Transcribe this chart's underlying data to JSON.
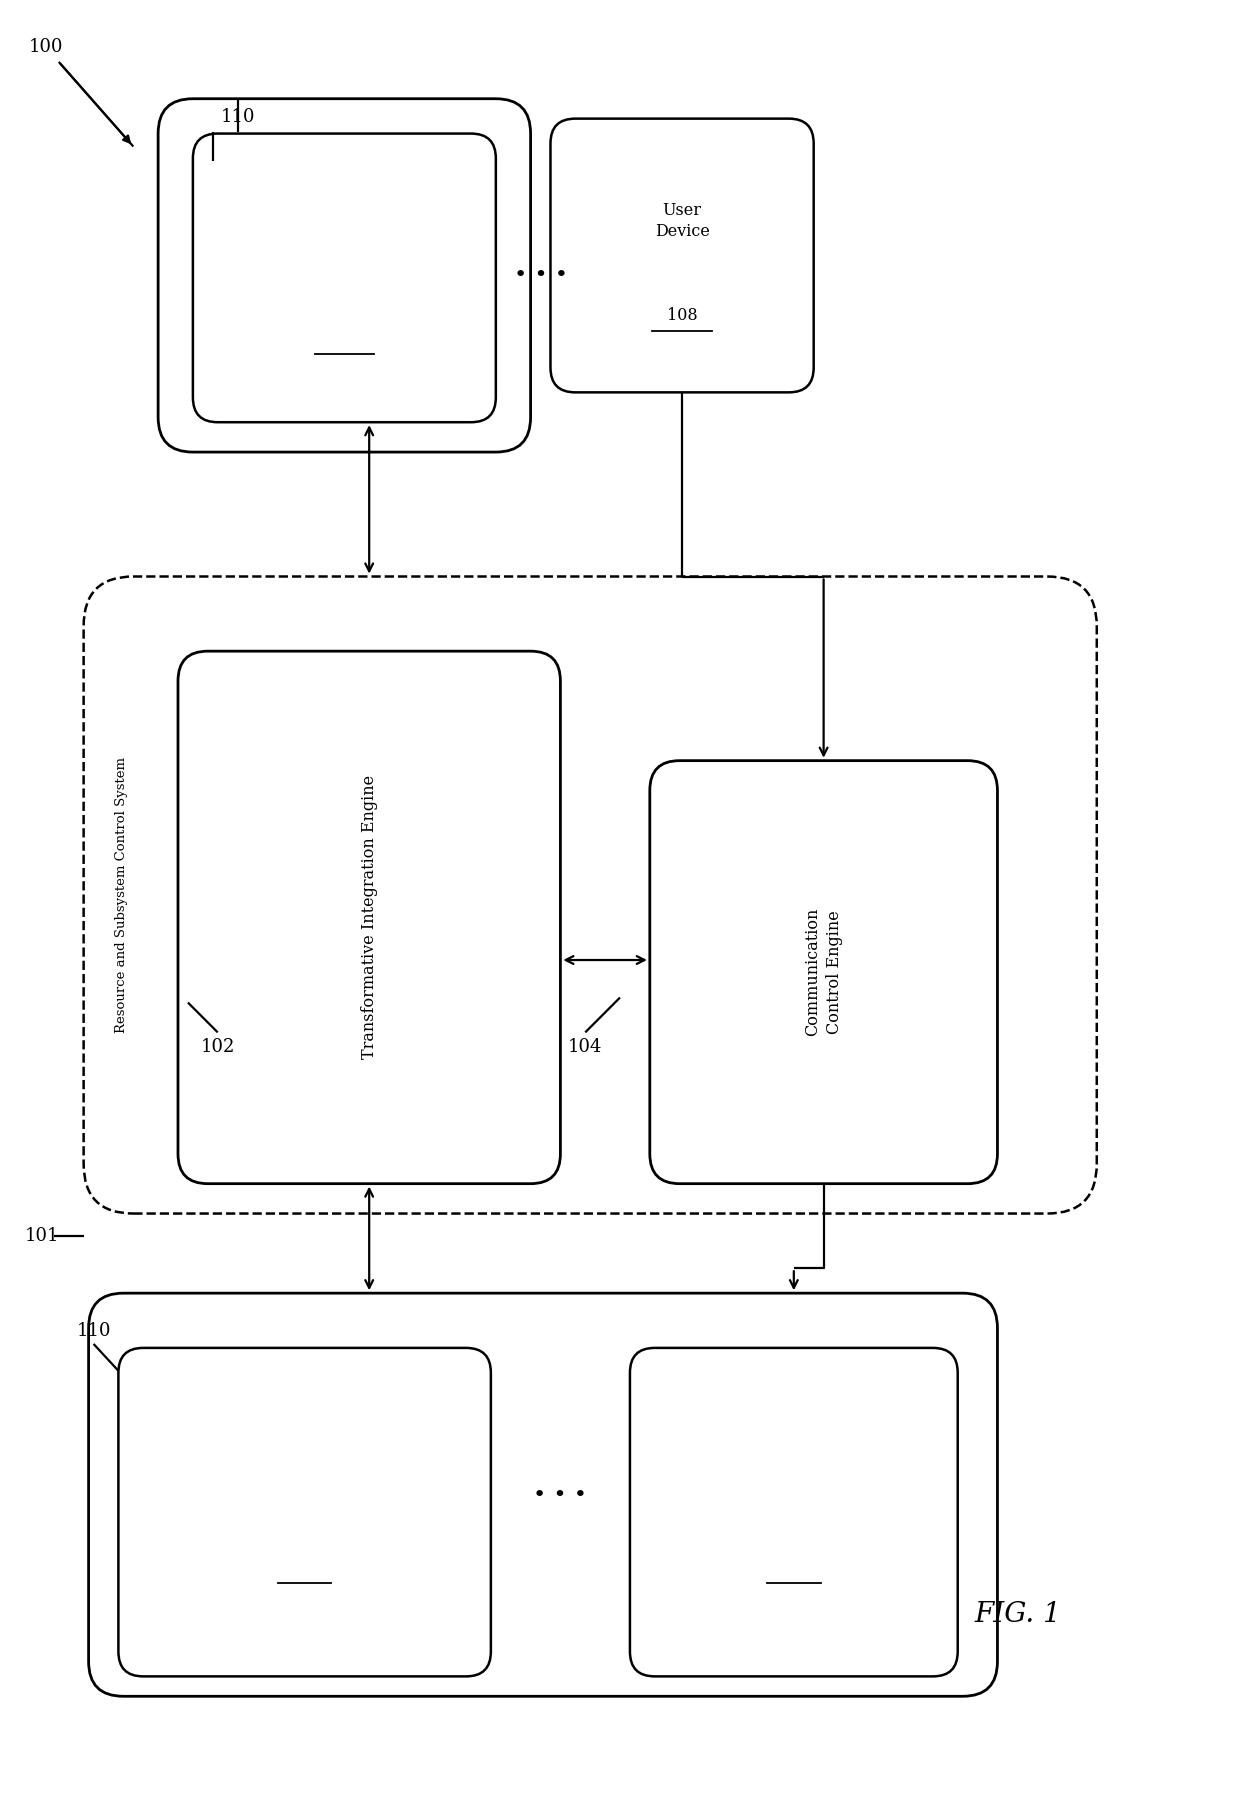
{
  "bg_color": "#ffffff",
  "line_color": "#000000",
  "fig_width": 12.4,
  "fig_height": 17.98,
  "title": "FIG. 1",
  "label_100": "100",
  "label_101": "101",
  "label_102": "102",
  "label_104": "104",
  "label_110_top": "110",
  "label_110_bot": "110",
  "tie_label": "Transformative Integration Engine",
  "cce_label": "Communication\nControl Engine",
  "rscs_label": "Resource and Subsystem Control System"
}
